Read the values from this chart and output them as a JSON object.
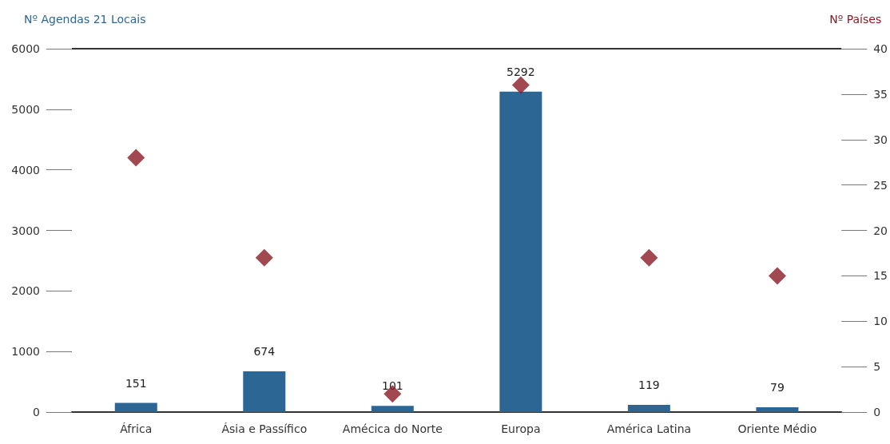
{
  "chart_data": {
    "type": "bar",
    "categories": [
      "África",
      "Ásia e Passífico",
      "Amécica do Norte",
      "Europa",
      "América Latina",
      "Oriente Médio"
    ],
    "ylabel": "Nº Agendas 21 Locais",
    "y2label": "Nº Países",
    "ylim": [
      0,
      6000
    ],
    "yticks": [
      0,
      1000,
      2000,
      3000,
      4000,
      5000,
      6000
    ],
    "y2lim": [
      0,
      40
    ],
    "y2ticks": [
      0,
      5,
      10,
      15,
      20,
      25,
      30,
      35,
      40
    ],
    "grid": false,
    "ref_lines": [
      {
        "axis": "y",
        "value": 6000,
        "label": null,
        "color": "#333333"
      }
    ],
    "series": [
      {
        "color": "#2b6694",
        "values": [
          151,
          674,
          101,
          5292,
          119,
          79
        ],
        "data_labels": true
      },
      {
        "type": "scatter",
        "axis": "y2",
        "color": "#8b1a24",
        "marker": "diamond",
        "values": [
          28,
          17,
          2,
          36,
          17,
          15
        ]
      }
    ]
  }
}
